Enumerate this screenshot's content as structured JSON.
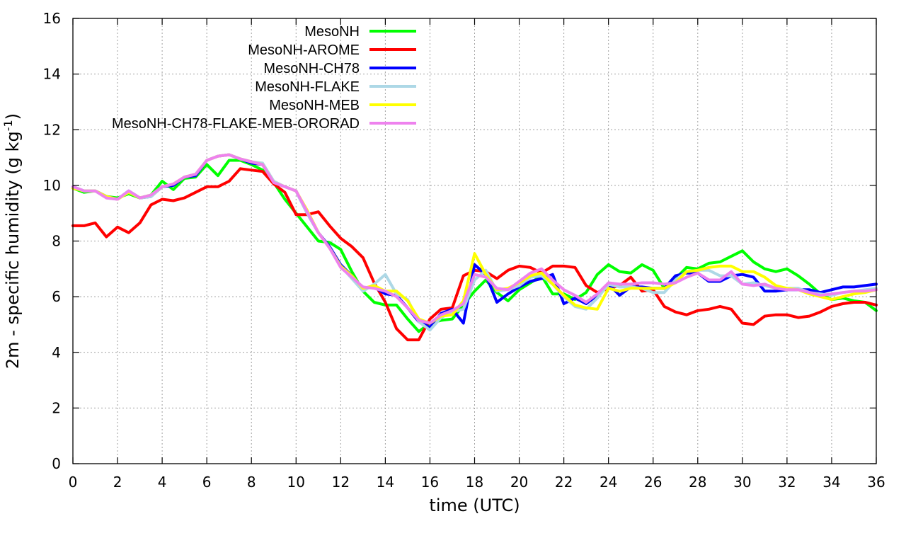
{
  "chart_data": {
    "type": "line",
    "xlabel": "time (UTC)",
    "ylabel": "2m - specific humidity (g kg",
    "ylabel_sup": "-1",
    "ylabel_suffix": ")",
    "xlim": [
      0,
      36
    ],
    "ylim": [
      0,
      16
    ],
    "xticks": [
      0,
      2,
      4,
      6,
      8,
      10,
      12,
      14,
      16,
      18,
      20,
      22,
      24,
      26,
      28,
      30,
      32,
      34,
      36
    ],
    "yticks": [
      0,
      2,
      4,
      6,
      8,
      10,
      12,
      14,
      16
    ],
    "grid": true,
    "legend_position": "top-left",
    "series": [
      {
        "name": "MesoNH",
        "color": "#00ff00",
        "x": [
          0,
          0.5,
          1,
          1.5,
          2,
          2.5,
          3,
          3.5,
          4,
          4.5,
          5,
          5.5,
          6,
          6.5,
          7,
          7.5,
          8,
          8.5,
          9,
          9.5,
          10,
          10.5,
          11,
          11.5,
          12,
          12.5,
          13,
          13.5,
          14,
          14.5,
          15,
          15.5,
          16,
          16.5,
          17,
          17.5,
          18,
          18.5,
          19,
          19.5,
          20,
          20.5,
          21,
          21.5,
          22,
          22.5,
          23,
          23.5,
          24,
          24.5,
          25,
          25.5,
          26,
          26.5,
          27,
          27.5,
          28,
          28.5,
          29,
          29.5,
          30,
          30.5,
          31,
          31.5,
          32,
          32.5,
          33,
          33.5,
          34,
          34.5,
          35,
          35.5,
          36
        ],
        "y": [
          9.9,
          9.75,
          9.8,
          9.6,
          9.55,
          9.7,
          9.55,
          9.65,
          10.15,
          9.85,
          10.25,
          10.3,
          10.75,
          10.35,
          10.9,
          10.9,
          10.75,
          10.55,
          10.1,
          9.5,
          9.0,
          8.5,
          8.0,
          7.95,
          7.7,
          6.9,
          6.2,
          5.8,
          5.7,
          5.7,
          5.2,
          4.75,
          5.05,
          5.15,
          5.2,
          5.7,
          6.2,
          6.6,
          6.15,
          5.85,
          6.25,
          6.5,
          6.75,
          6.1,
          6.1,
          5.9,
          6.15,
          6.8,
          7.15,
          6.9,
          6.85,
          7.15,
          6.95,
          6.3,
          6.65,
          7.05,
          7.0,
          7.2,
          7.25,
          7.45,
          7.65,
          7.25,
          7.0,
          6.9,
          7.0,
          6.75,
          6.45,
          6.1,
          5.9,
          5.95,
          5.85,
          5.8,
          5.5
        ]
      },
      {
        "name": "MesoNH-AROME",
        "color": "#ff0000",
        "x": [
          0,
          0.5,
          1,
          1.5,
          2,
          2.5,
          3,
          3.5,
          4,
          4.5,
          5,
          5.5,
          6,
          6.5,
          7,
          7.5,
          8,
          8.5,
          9,
          9.5,
          10,
          10.5,
          11,
          11.5,
          12,
          12.5,
          13,
          13.5,
          14,
          14.5,
          15,
          15.5,
          16,
          16.5,
          17,
          17.5,
          18,
          18.5,
          19,
          19.5,
          20,
          20.5,
          21,
          21.5,
          22,
          22.5,
          23,
          23.5,
          24,
          24.5,
          25,
          25.5,
          26,
          26.5,
          27,
          27.5,
          28,
          28.5,
          29,
          29.5,
          30,
          30.5,
          31,
          31.5,
          32,
          32.5,
          33,
          33.5,
          34,
          34.5,
          35,
          35.5,
          36
        ],
        "y": [
          8.55,
          8.55,
          8.65,
          8.15,
          8.5,
          8.3,
          8.65,
          9.3,
          9.5,
          9.45,
          9.55,
          9.75,
          9.95,
          9.95,
          10.15,
          10.6,
          10.55,
          10.5,
          10.05,
          9.75,
          8.95,
          8.95,
          9.05,
          8.55,
          8.1,
          7.8,
          7.4,
          6.5,
          5.8,
          4.85,
          4.45,
          4.45,
          5.2,
          5.55,
          5.6,
          6.75,
          6.95,
          6.9,
          6.65,
          6.95,
          7.1,
          7.05,
          6.85,
          7.1,
          7.1,
          7.05,
          6.4,
          6.15,
          6.3,
          6.4,
          6.7,
          6.2,
          6.25,
          5.65,
          5.45,
          5.35,
          5.5,
          5.55,
          5.65,
          5.55,
          5.05,
          5.0,
          5.3,
          5.35,
          5.35,
          5.25,
          5.3,
          5.45,
          5.65,
          5.75,
          5.8,
          5.8,
          5.7
        ]
      },
      {
        "name": "MesoNH-CH78",
        "color": "#0000ff",
        "x": [
          0,
          0.5,
          1,
          1.5,
          2,
          2.5,
          3,
          3.5,
          4,
          4.5,
          5,
          5.5,
          6,
          6.5,
          7,
          7.5,
          8,
          8.5,
          9,
          9.5,
          10,
          10.5,
          11,
          11.5,
          12,
          12.5,
          13,
          13.5,
          14,
          14.5,
          15,
          15.5,
          16,
          16.5,
          17,
          17.5,
          18,
          18.5,
          19,
          19.5,
          20,
          20.5,
          21,
          21.5,
          22,
          22.5,
          23,
          23.5,
          24,
          24.5,
          25,
          25.5,
          26,
          26.5,
          27,
          27.5,
          28,
          28.5,
          29,
          29.5,
          30,
          30.5,
          31,
          31.5,
          32,
          32.5,
          33,
          33.5,
          34,
          34.5,
          35,
          35.5,
          36
        ],
        "y": [
          9.95,
          9.8,
          9.8,
          9.6,
          9.5,
          9.8,
          9.55,
          9.6,
          9.95,
          10.0,
          10.3,
          10.35,
          10.9,
          11.05,
          11.1,
          10.95,
          10.8,
          10.75,
          10.1,
          9.95,
          9.8,
          9.0,
          8.3,
          7.8,
          7.15,
          6.75,
          6.3,
          6.35,
          6.1,
          6.05,
          5.6,
          5.1,
          4.9,
          5.4,
          5.55,
          5.05,
          7.15,
          6.8,
          5.8,
          6.1,
          6.35,
          6.55,
          6.65,
          6.8,
          5.75,
          5.95,
          5.75,
          6.05,
          6.45,
          6.05,
          6.35,
          6.35,
          6.3,
          6.3,
          6.75,
          6.85,
          6.85,
          6.55,
          6.55,
          6.75,
          6.8,
          6.7,
          6.2,
          6.2,
          6.25,
          6.25,
          6.25,
          6.15,
          6.25,
          6.35,
          6.35,
          6.4,
          6.45
        ]
      },
      {
        "name": "MesoNH-FLAKE",
        "color": "#add8e6",
        "x": [
          0,
          0.5,
          1,
          1.5,
          2,
          2.5,
          3,
          3.5,
          4,
          4.5,
          5,
          5.5,
          6,
          6.5,
          7,
          7.5,
          8,
          8.5,
          9,
          9.5,
          10,
          10.5,
          11,
          11.5,
          12,
          12.5,
          13,
          13.5,
          14,
          14.5,
          15,
          15.5,
          16,
          16.5,
          17,
          17.5,
          18,
          18.5,
          19,
          19.5,
          20,
          20.5,
          21,
          21.5,
          22,
          22.5,
          23,
          23.5,
          24,
          24.5,
          25,
          25.5,
          26,
          26.5,
          27,
          27.5,
          28,
          28.5,
          29,
          29.5,
          30,
          30.5,
          31,
          31.5,
          32,
          32.5,
          33,
          33.5,
          34,
          34.5,
          35,
          35.5,
          36
        ],
        "y": [
          9.95,
          9.8,
          9.8,
          9.55,
          9.5,
          9.8,
          9.55,
          9.6,
          9.95,
          10.05,
          10.3,
          10.4,
          10.9,
          11.05,
          11.1,
          10.95,
          10.85,
          10.8,
          10.15,
          9.95,
          9.8,
          9.0,
          8.3,
          7.75,
          7.1,
          6.65,
          6.2,
          6.45,
          6.8,
          6.1,
          5.9,
          5.1,
          4.8,
          5.25,
          5.45,
          5.55,
          6.6,
          6.95,
          6.2,
          6.25,
          6.4,
          6.7,
          6.75,
          6.45,
          6.0,
          5.65,
          5.55,
          5.95,
          6.45,
          6.35,
          6.35,
          6.3,
          6.15,
          6.15,
          6.6,
          6.9,
          6.95,
          6.95,
          6.75,
          6.75,
          6.45,
          6.5,
          6.4,
          6.3,
          6.3,
          6.3,
          6.15,
          6.1,
          6.05,
          6.15,
          6.2,
          6.25,
          6.3
        ]
      },
      {
        "name": "MesoNH-MEB",
        "color": "#ffff00",
        "x": [
          0,
          0.5,
          1,
          1.5,
          2,
          2.5,
          3,
          3.5,
          4,
          4.5,
          5,
          5.5,
          6,
          6.5,
          7,
          7.5,
          8,
          8.5,
          9,
          9.5,
          10,
          10.5,
          11,
          11.5,
          12,
          12.5,
          13,
          13.5,
          14,
          14.5,
          15,
          15.5,
          16,
          16.5,
          17,
          17.5,
          18,
          18.5,
          19,
          19.5,
          20,
          20.5,
          21,
          21.5,
          22,
          22.5,
          23,
          23.5,
          24,
          24.5,
          25,
          25.5,
          26,
          26.5,
          27,
          27.5,
          28,
          28.5,
          29,
          29.5,
          30,
          30.5,
          31,
          31.5,
          32,
          32.5,
          33,
          33.5,
          34,
          34.5,
          35,
          35.5,
          36
        ],
        "y": [
          9.9,
          9.8,
          9.8,
          9.6,
          9.5,
          9.75,
          9.55,
          9.65,
          9.95,
          10.05,
          10.3,
          10.4,
          10.9,
          11.05,
          11.1,
          10.95,
          10.85,
          10.75,
          10.1,
          9.95,
          9.8,
          9.1,
          8.3,
          7.75,
          7.1,
          6.75,
          6.3,
          6.4,
          6.2,
          6.2,
          5.85,
          5.2,
          5.05,
          5.3,
          5.35,
          5.85,
          7.55,
          6.8,
          6.25,
          6.3,
          6.5,
          6.75,
          6.85,
          6.45,
          6.05,
          5.7,
          5.6,
          5.55,
          6.3,
          6.2,
          6.3,
          6.3,
          6.3,
          6.3,
          6.5,
          6.9,
          6.95,
          7.05,
          7.1,
          7.1,
          6.9,
          6.9,
          6.7,
          6.4,
          6.3,
          6.25,
          6.1,
          6.0,
          5.9,
          6.0,
          6.1,
          6.15,
          6.25
        ]
      },
      {
        "name": "MesoNH-CH78-FLAKE-MEB-ORORAD",
        "color": "#ee82ee",
        "x": [
          0,
          0.5,
          1,
          1.5,
          2,
          2.5,
          3,
          3.5,
          4,
          4.5,
          5,
          5.5,
          6,
          6.5,
          7,
          7.5,
          8,
          8.5,
          9,
          9.5,
          10,
          10.5,
          11,
          11.5,
          12,
          12.5,
          13,
          13.5,
          14,
          14.5,
          15,
          15.5,
          16,
          16.5,
          17,
          17.5,
          18,
          18.5,
          19,
          19.5,
          20,
          20.5,
          21,
          21.5,
          22,
          22.5,
          23,
          23.5,
          24,
          24.5,
          25,
          25.5,
          26,
          26.5,
          27,
          27.5,
          28,
          28.5,
          29,
          29.5,
          30,
          30.5,
          31,
          31.5,
          32,
          32.5,
          33,
          33.5,
          34,
          34.5,
          35,
          35.5,
          36
        ],
        "y": [
          9.95,
          9.8,
          9.8,
          9.55,
          9.5,
          9.8,
          9.55,
          9.65,
          9.95,
          10.05,
          10.3,
          10.4,
          10.9,
          11.05,
          11.1,
          10.95,
          10.85,
          10.75,
          10.1,
          9.95,
          9.8,
          9.05,
          8.3,
          7.75,
          7.05,
          6.7,
          6.35,
          6.3,
          6.2,
          6.0,
          5.6,
          5.15,
          5.05,
          5.35,
          5.5,
          5.75,
          6.8,
          6.7,
          6.3,
          6.25,
          6.55,
          6.85,
          7.0,
          6.6,
          6.25,
          6.05,
          5.8,
          6.1,
          6.5,
          6.45,
          6.45,
          6.5,
          6.5,
          6.45,
          6.5,
          6.7,
          6.85,
          6.6,
          6.6,
          6.9,
          6.45,
          6.4,
          6.45,
          6.3,
          6.25,
          6.25,
          6.15,
          6.05,
          6.1,
          6.15,
          6.2,
          6.2,
          6.25
        ]
      }
    ]
  }
}
